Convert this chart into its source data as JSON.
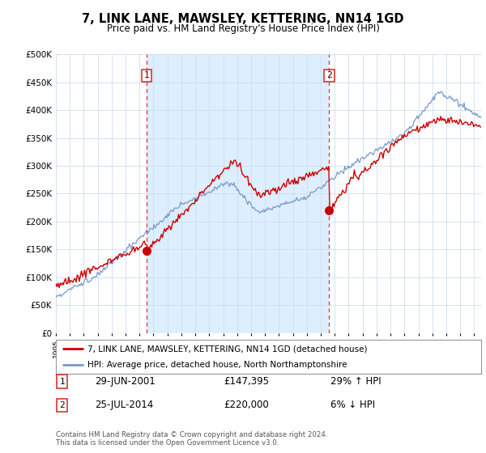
{
  "title": "7, LINK LANE, MAWSLEY, KETTERING, NN14 1GD",
  "subtitle": "Price paid vs. HM Land Registry's House Price Index (HPI)",
  "background_color": "#ffffff",
  "plot_bg_color": "#ffffff",
  "fill_color": "#ddeeff",
  "grid_color": "#ccddee",
  "red_line_color": "#cc0000",
  "blue_line_color": "#7799cc",
  "dashed_vline_color": "#dd3333",
  "legend_label_red": "7, LINK LANE, MAWSLEY, KETTERING, NN14 1GD (detached house)",
  "legend_label_blue": "HPI: Average price, detached house, North Northamptonshire",
  "sale1_date": "29-JUN-2001",
  "sale1_price": "£147,395",
  "sale1_hpi": "29% ↑ HPI",
  "sale2_date": "25-JUL-2014",
  "sale2_price": "£220,000",
  "sale2_hpi": "6% ↓ HPI",
  "footnote1": "Contains HM Land Registry data © Crown copyright and database right 2024.",
  "footnote2": "This data is licensed under the Open Government Licence v3.0.",
  "ylim_min": 0,
  "ylim_max": 500000,
  "sale1_x_year": 2001.5,
  "sale2_x_year": 2014.6,
  "xmin": 1995,
  "xmax": 2025.5
}
